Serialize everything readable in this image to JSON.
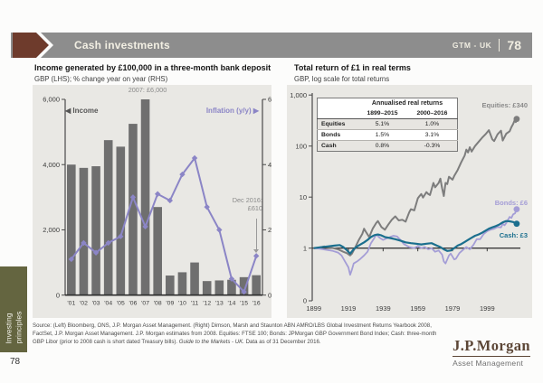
{
  "header": {
    "title": "Cash investments",
    "gtm_label": "GTM - UK",
    "page_number": "78"
  },
  "icons": {
    "left_triangle": "◀",
    "right_triangle": "▶"
  },
  "left_chart": {
    "title": "Income generated by £100,000 in a three-month bank deposit",
    "subtitle": "GBP (LHS); % change year on year (RHS)",
    "legend_income": "Income",
    "legend_inflation": "Inflation (y/y)",
    "annotation_top": "2007: £6,000",
    "annotation_dec_line1": "Dec 2016:",
    "annotation_dec_line2": "£610"
  },
  "right_chart": {
    "title": "Total return of £1 in real terms",
    "subtitle": "GBP, log scale for total returns",
    "equities_label": "Equities: £340",
    "bonds_label": "Bonds: £6",
    "cash_label": "Cash: £3",
    "table": {
      "title": "Annualised real returns",
      "col1": "1899–2015",
      "col2": "2000–2016",
      "rows": [
        {
          "label": "Equities",
          "v1": "5.1%",
          "v2": "1.0%"
        },
        {
          "label": "Bonds",
          "v1": "1.5%",
          "v2": "3.1%"
        },
        {
          "label": "Cash",
          "v1": "0.8%",
          "v2": "-0.3%"
        }
      ]
    }
  },
  "chart_data": [
    {
      "type": "bar",
      "title": "Income generated by £100,000 in a three-month bank deposit",
      "categories": [
        "'01",
        "'02",
        "'03",
        "'04",
        "'05",
        "'06",
        "'07",
        "'08",
        "'09",
        "'10",
        "'11",
        "'12",
        "'13",
        "'14",
        "'15",
        "'16"
      ],
      "series": [
        {
          "name": "Income",
          "type": "bar",
          "axis": "left",
          "color": "#6f6f6f",
          "values": [
            4000,
            3900,
            3950,
            4750,
            4550,
            5250,
            6000,
            2700,
            600,
            700,
            1000,
            430,
            450,
            470,
            550,
            610
          ]
        },
        {
          "name": "Inflation (y/y)",
          "type": "line",
          "axis": "right",
          "color": "#8b85c6",
          "values": [
            1.1,
            1.6,
            1.3,
            1.6,
            1.8,
            3.0,
            2.1,
            3.1,
            2.9,
            3.7,
            4.2,
            2.7,
            2.0,
            0.5,
            0.1,
            1.2
          ]
        }
      ],
      "left_axis": {
        "ticks": [
          0,
          2000,
          4000,
          6000
        ],
        "labels": [
          "0",
          "2,000",
          "4,000",
          "6,000"
        ],
        "max": 6000
      },
      "right_axis": {
        "ticks": [
          0,
          2,
          4,
          6
        ],
        "labels": [
          "0",
          "2",
          "4",
          "6"
        ],
        "max": 6
      }
    },
    {
      "type": "line",
      "title": "Total return of £1 in real terms",
      "y_scale": "log",
      "x_range": [
        1899,
        2016
      ],
      "x_ticks": [
        1899,
        1919,
        1939,
        1959,
        1979,
        1999
      ],
      "y_ticks": {
        "values": [
          1000,
          100,
          10,
          1
        ],
        "labels": [
          "1,000",
          "100",
          "10",
          "1"
        ],
        "bottom_label": "0"
      },
      "baseline_value": 1,
      "series": [
        {
          "name": "Equities",
          "color": "#7d7d7d",
          "end_value": 340,
          "points": [
            [
              1899,
              1.0
            ],
            [
              1902,
              1.02
            ],
            [
              1905,
              1.08
            ],
            [
              1909,
              1.02
            ],
            [
              1913,
              0.95
            ],
            [
              1916,
              0.85
            ],
            [
              1918,
              0.8
            ],
            [
              1920,
              0.72
            ],
            [
              1921,
              0.78
            ],
            [
              1923,
              1.05
            ],
            [
              1925,
              1.45
            ],
            [
              1927,
              1.9
            ],
            [
              1928,
              2.4
            ],
            [
              1929,
              2.1
            ],
            [
              1931,
              1.65
            ],
            [
              1933,
              2.4
            ],
            [
              1935,
              3.1
            ],
            [
              1936,
              3.4
            ],
            [
              1938,
              2.6
            ],
            [
              1940,
              2.3
            ],
            [
              1942,
              2.9
            ],
            [
              1944,
              3.6
            ],
            [
              1946,
              4.2
            ],
            [
              1948,
              3.5
            ],
            [
              1950,
              3.6
            ],
            [
              1952,
              3.3
            ],
            [
              1954,
              5.0
            ],
            [
              1955,
              5.8
            ],
            [
              1957,
              5.5
            ],
            [
              1959,
              9.5
            ],
            [
              1960,
              10.5
            ],
            [
              1961,
              11.5
            ],
            [
              1962,
              9.8
            ],
            [
              1964,
              12.5
            ],
            [
              1965,
              11.5
            ],
            [
              1966,
              11.0
            ],
            [
              1968,
              19.0
            ],
            [
              1969,
              15.5
            ],
            [
              1971,
              19.0
            ],
            [
              1972,
              23.0
            ],
            [
              1973,
              15.0
            ],
            [
              1974,
              10.5
            ],
            [
              1975,
              19.0
            ],
            [
              1976,
              18.0
            ],
            [
              1977,
              25.0
            ],
            [
              1979,
              22.0
            ],
            [
              1980,
              26.0
            ],
            [
              1982,
              34.0
            ],
            [
              1984,
              48.0
            ],
            [
              1986,
              65.0
            ],
            [
              1987,
              85.0
            ],
            [
              1988,
              75.0
            ],
            [
              1989,
              95.0
            ],
            [
              1990,
              78.0
            ],
            [
              1992,
              100.0
            ],
            [
              1994,
              120.0
            ],
            [
              1996,
              145.0
            ],
            [
              1998,
              170.0
            ],
            [
              2000,
              205.0
            ],
            [
              2002,
              135.0
            ],
            [
              2003,
              125.0
            ],
            [
              2005,
              170.0
            ],
            [
              2007,
              200.0
            ],
            [
              2008,
              128.0
            ],
            [
              2010,
              175.0
            ],
            [
              2012,
              195.0
            ],
            [
              2013,
              235.0
            ],
            [
              2014,
              270.0
            ],
            [
              2015,
              330.0
            ],
            [
              2015.5,
              295.0
            ],
            [
              2016,
              340.0
            ]
          ]
        },
        {
          "name": "Bonds",
          "color": "#a49dd6",
          "end_value": 6,
          "points": [
            [
              1899,
              1.0
            ],
            [
              1902,
              0.98
            ],
            [
              1906,
              0.93
            ],
            [
              1910,
              0.88
            ],
            [
              1913,
              0.82
            ],
            [
              1915,
              0.72
            ],
            [
              1917,
              0.55
            ],
            [
              1919,
              0.42
            ],
            [
              1920,
              0.3
            ],
            [
              1921,
              0.38
            ],
            [
              1922,
              0.5
            ],
            [
              1924,
              0.55
            ],
            [
              1926,
              0.62
            ],
            [
              1928,
              0.72
            ],
            [
              1930,
              0.85
            ],
            [
              1932,
              1.25
            ],
            [
              1934,
              1.6
            ],
            [
              1935,
              1.85
            ],
            [
              1937,
              1.6
            ],
            [
              1939,
              1.45
            ],
            [
              1941,
              1.55
            ],
            [
              1943,
              1.65
            ],
            [
              1945,
              1.75
            ],
            [
              1947,
              1.7
            ],
            [
              1949,
              1.45
            ],
            [
              1951,
              1.2
            ],
            [
              1954,
              1.05
            ],
            [
              1957,
              1.0
            ],
            [
              1959,
              1.1
            ],
            [
              1961,
              1.0
            ],
            [
              1963,
              1.05
            ],
            [
              1965,
              0.95
            ],
            [
              1967,
              1.0
            ],
            [
              1969,
              0.85
            ],
            [
              1971,
              0.9
            ],
            [
              1973,
              0.75
            ],
            [
              1974,
              0.55
            ],
            [
              1975,
              0.5
            ],
            [
              1977,
              0.72
            ],
            [
              1978,
              0.78
            ],
            [
              1980,
              0.6
            ],
            [
              1981,
              0.62
            ],
            [
              1983,
              0.8
            ],
            [
              1985,
              0.92
            ],
            [
              1987,
              1.05
            ],
            [
              1989,
              0.95
            ],
            [
              1991,
              1.15
            ],
            [
              1993,
              1.5
            ],
            [
              1995,
              1.5
            ],
            [
              1997,
              1.9
            ],
            [
              1999,
              2.15
            ],
            [
              2001,
              2.3
            ],
            [
              2003,
              2.4
            ],
            [
              2005,
              2.6
            ],
            [
              2007,
              2.55
            ],
            [
              2008,
              3.0
            ],
            [
              2009,
              2.8
            ],
            [
              2010,
              3.1
            ],
            [
              2011,
              3.6
            ],
            [
              2012,
              4.1
            ],
            [
              2013,
              3.9
            ],
            [
              2014,
              4.6
            ],
            [
              2015,
              4.8
            ],
            [
              2015.5,
              5.2
            ],
            [
              2016,
              5.8
            ]
          ]
        },
        {
          "name": "Cash",
          "color": "#1b6f8e",
          "end_value": 3,
          "points": [
            [
              1899,
              1.0
            ],
            [
              1903,
              1.04
            ],
            [
              1907,
              1.08
            ],
            [
              1911,
              1.12
            ],
            [
              1914,
              1.15
            ],
            [
              1916,
              1.05
            ],
            [
              1918,
              0.92
            ],
            [
              1920,
              0.78
            ],
            [
              1922,
              0.95
            ],
            [
              1924,
              1.08
            ],
            [
              1926,
              1.18
            ],
            [
              1928,
              1.3
            ],
            [
              1930,
              1.45
            ],
            [
              1932,
              1.65
            ],
            [
              1934,
              1.8
            ],
            [
              1936,
              1.85
            ],
            [
              1938,
              1.78
            ],
            [
              1940,
              1.65
            ],
            [
              1943,
              1.58
            ],
            [
              1946,
              1.5
            ],
            [
              1949,
              1.4
            ],
            [
              1952,
              1.3
            ],
            [
              1955,
              1.25
            ],
            [
              1958,
              1.22
            ],
            [
              1961,
              1.18
            ],
            [
              1964,
              1.22
            ],
            [
              1967,
              1.25
            ],
            [
              1970,
              1.12
            ],
            [
              1972,
              1.05
            ],
            [
              1974,
              0.95
            ],
            [
              1976,
              0.88
            ],
            [
              1978,
              0.9
            ],
            [
              1980,
              1.0
            ],
            [
              1982,
              1.12
            ],
            [
              1984,
              1.2
            ],
            [
              1986,
              1.32
            ],
            [
              1988,
              1.45
            ],
            [
              1990,
              1.6
            ],
            [
              1992,
              1.75
            ],
            [
              1994,
              1.85
            ],
            [
              1996,
              2.0
            ],
            [
              1998,
              2.2
            ],
            [
              2000,
              2.4
            ],
            [
              2002,
              2.55
            ],
            [
              2004,
              2.7
            ],
            [
              2006,
              2.9
            ],
            [
              2008,
              3.2
            ],
            [
              2010,
              3.4
            ],
            [
              2012,
              3.35
            ],
            [
              2014,
              3.25
            ],
            [
              2016,
              3.0
            ]
          ]
        }
      ]
    }
  ],
  "source": {
    "line1": "Source: (Left) Bloomberg, ONS, J.P. Morgan Asset Management. (Right) Dimson, Marsh and Staunton ABN AMRO/LBS Global Investment Returns Yearbook 2008,",
    "line2": "FactSet, J.P. Morgan Asset Management. J.P. Morgan estimates from 2008. Equities: FTSE 100; Bonds: JPMorgan GBP Government Bond Index; Cash: three-month",
    "line3_pre": "GBP Libor (prior to 2008 cash is short dated Treasury bills). ",
    "line3_italic": "Guide to the Markets - UK.",
    "line3_post": " Data as of 31 December 2016."
  },
  "sidebar": {
    "line1": "Investing",
    "line2": "principles",
    "page_number": "78"
  },
  "logo": {
    "wordmark": "J.P.Morgan",
    "division": "Asset Management"
  },
  "colors": {
    "header_bar": "#8d8d8d",
    "header_arrow": "#6e3b2c",
    "panel_bg": "#e9e8e4",
    "bar": "#6f6f6f",
    "inflation_line": "#8b85c6",
    "equities": "#7d7d7d",
    "bonds": "#a49dd6",
    "cash": "#1b6f8e",
    "sidebar_tab": "#646540",
    "logo_brown": "#5c4636"
  }
}
